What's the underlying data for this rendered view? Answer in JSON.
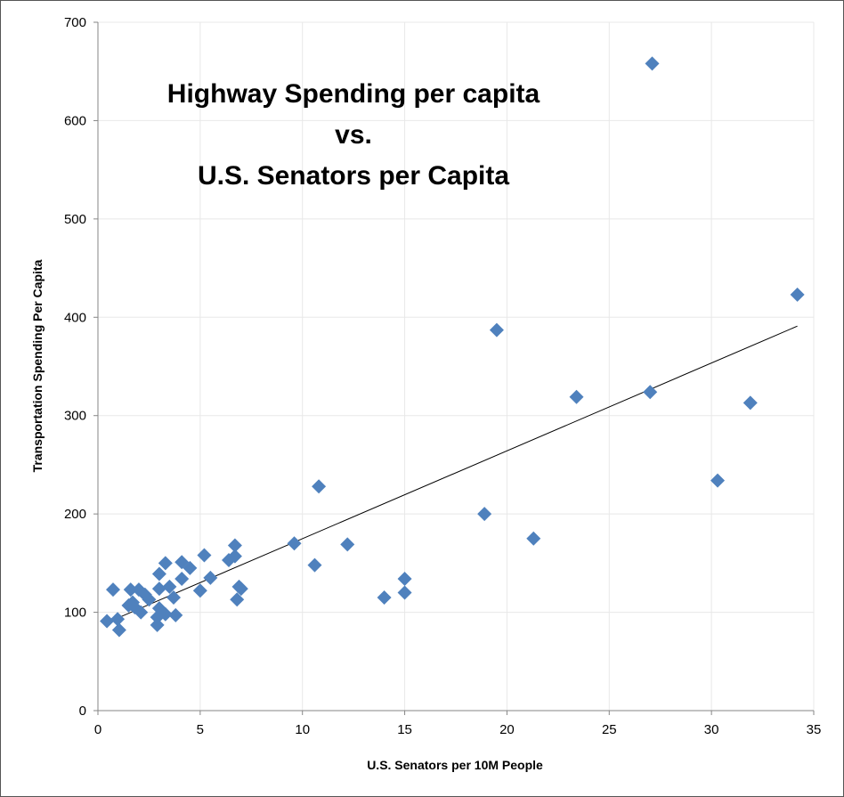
{
  "chart_data": {
    "type": "scatter",
    "title_lines": [
      "Highway Spending per capita",
      "vs.",
      "U.S. Senators per Capita"
    ],
    "xlabel": "U.S. Senators per 10M People",
    "ylabel": "Transportation  Spending Per Capita",
    "xlim": [
      0,
      35
    ],
    "ylim": [
      0,
      700
    ],
    "xticks": [
      0,
      5,
      10,
      15,
      20,
      25,
      30,
      35
    ],
    "yticks": [
      0,
      100,
      200,
      300,
      400,
      500,
      600,
      700
    ],
    "grid": true,
    "legend": "none",
    "marker": "diamond",
    "marker_color": "#4F81BD",
    "trendline": {
      "type": "linear",
      "x": [
        0.5,
        34.2
      ],
      "y": [
        90,
        391
      ],
      "color": "#000000"
    },
    "x": [
      0.44,
      0.74,
      0.96,
      1.04,
      1.6,
      1.7,
      1.8,
      2.0,
      2.1,
      2.3,
      2.5,
      1.5,
      2.9,
      2.9,
      3.0,
      3.0,
      3.0,
      3.3,
      3.3,
      3.5,
      3.7,
      3.8,
      4.1,
      4.1,
      4.5,
      5.0,
      5.2,
      5.5,
      6.4,
      6.7,
      6.7,
      6.8,
      7.0,
      6.9,
      9.6,
      10.6,
      10.8,
      12.2,
      14.0,
      15.0,
      15.0,
      18.9,
      19.5,
      21.3,
      23.4,
      27.0,
      27.1,
      30.3,
      31.9,
      34.2
    ],
    "y": [
      91,
      123,
      93,
      82,
      123,
      110,
      105,
      123,
      100,
      118,
      113,
      107,
      95,
      87,
      104,
      124,
      139,
      150,
      98,
      126,
      115,
      97,
      134,
      151,
      145,
      122,
      158,
      135,
      153,
      168,
      157,
      113,
      124,
      126,
      170,
      148,
      228,
      169,
      115,
      134,
      120,
      200,
      387,
      175,
      319,
      324,
      658,
      234,
      313,
      423
    ]
  }
}
